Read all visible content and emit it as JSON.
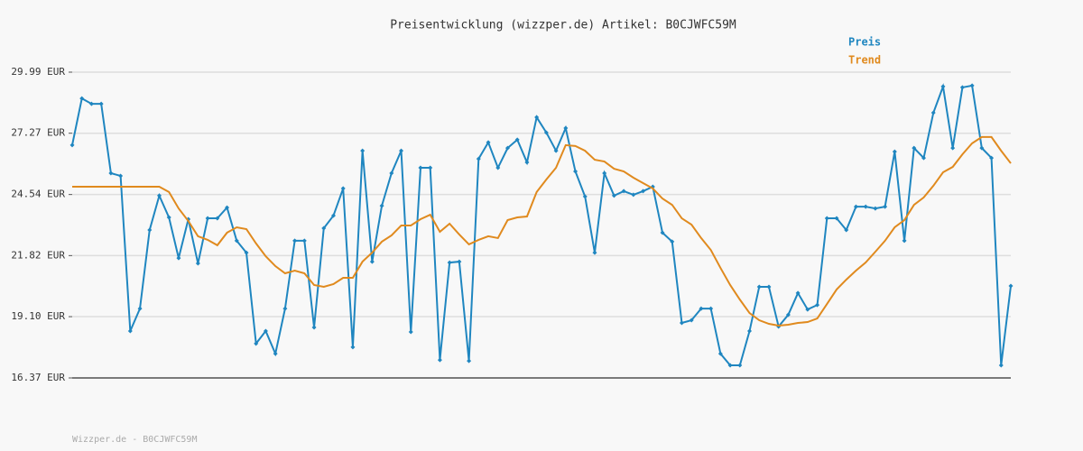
{
  "chart_data": {
    "type": "line",
    "title": "Preisentwicklung (wizzper.de) Artikel: B0CJWFC59M",
    "footer": "Wizzper.de - B0CJWFC59M",
    "categories": [
      null,
      null,
      null,
      null,
      null,
      null,
      null,
      null,
      null,
      null,
      null,
      null,
      null,
      null,
      null,
      null,
      null,
      null,
      null,
      null,
      null,
      null,
      null,
      null,
      null,
      null,
      null,
      null,
      null,
      null,
      null,
      null,
      null,
      null,
      null,
      null,
      null,
      null,
      null,
      null,
      null,
      null,
      null,
      null,
      null,
      null,
      null,
      null,
      null,
      null,
      null,
      null,
      null,
      null,
      null,
      null,
      null,
      null,
      null,
      null,
      null,
      null,
      null,
      null,
      null,
      null,
      null,
      null,
      null,
      null,
      null,
      null,
      null,
      null,
      null,
      null,
      null,
      null,
      null,
      null,
      null,
      null,
      null,
      null,
      null,
      null,
      null,
      null,
      null,
      null,
      null,
      null,
      null,
      null,
      null,
      null,
      null,
      null
    ],
    "ylim": [
      16.37,
      29.99
    ],
    "yticks": [
      {
        "value": 16.37,
        "label": "16.37 EUR"
      },
      {
        "value": 19.1,
        "label": "19.10 EUR"
      },
      {
        "value": 21.82,
        "label": "21.82 EUR"
      },
      {
        "value": 24.54,
        "label": "24.54 EUR"
      },
      {
        "value": 27.27,
        "label": "27.27 EUR"
      },
      {
        "value": 29.99,
        "label": "29.99 EUR"
      }
    ],
    "grid": true,
    "legend": "top-right",
    "series": [
      {
        "name": "Preis",
        "color": "#1f86c0",
        "markers": true,
        "values": [
          26.74,
          28.82,
          28.58,
          28.58,
          25.49,
          25.37,
          18.46,
          19.46,
          22.96,
          24.49,
          23.52,
          21.71,
          23.44,
          21.47,
          23.48,
          23.48,
          23.96,
          22.48,
          21.95,
          17.9,
          18.46,
          17.45,
          19.46,
          22.48,
          22.48,
          18.62,
          23.04,
          23.6,
          24.81,
          17.74,
          26.49,
          21.55,
          24.04,
          25.49,
          26.49,
          18.42,
          25.73,
          25.73,
          17.17,
          21.51,
          21.55,
          17.13,
          26.13,
          26.86,
          25.73,
          26.61,
          26.98,
          25.97,
          27.98,
          27.3,
          26.49,
          27.5,
          25.57,
          24.45,
          21.95,
          25.49,
          24.49,
          24.69,
          24.53,
          24.69,
          24.89,
          22.84,
          22.44,
          18.82,
          18.94,
          19.46,
          19.46,
          17.45,
          16.93,
          16.93,
          18.46,
          20.43,
          20.43,
          18.66,
          19.18,
          20.15,
          19.42,
          19.62,
          23.48,
          23.48,
          22.96,
          24.0,
          24.0,
          23.92,
          24.0,
          26.45,
          22.48,
          26.61,
          26.17,
          28.18,
          29.35,
          26.61,
          29.31,
          29.39,
          26.61,
          26.17,
          16.93,
          20.47
        ]
      },
      {
        "name": "Trend",
        "color": "#e08a1e",
        "markers": false,
        "values": [
          24.89,
          24.89,
          24.89,
          24.89,
          24.89,
          24.89,
          24.89,
          24.89,
          24.89,
          24.89,
          24.65,
          23.92,
          23.36,
          22.68,
          22.52,
          22.28,
          22.84,
          23.08,
          23.0,
          22.36,
          21.79,
          21.35,
          21.03,
          21.15,
          21.03,
          20.51,
          20.43,
          20.55,
          20.83,
          20.83,
          21.55,
          21.95,
          22.44,
          22.72,
          23.16,
          23.16,
          23.44,
          23.64,
          22.88,
          23.24,
          22.76,
          22.32,
          22.52,
          22.68,
          22.6,
          23.4,
          23.52,
          23.56,
          24.65,
          25.21,
          25.73,
          26.74,
          26.7,
          26.49,
          26.09,
          26.01,
          25.69,
          25.57,
          25.29,
          25.05,
          24.81,
          24.36,
          24.08,
          23.48,
          23.2,
          22.6,
          22.07,
          21.27,
          20.51,
          19.86,
          19.26,
          18.94,
          18.78,
          18.7,
          18.74,
          18.82,
          18.86,
          19.02,
          19.66,
          20.31,
          20.75,
          21.15,
          21.51,
          21.99,
          22.48,
          23.08,
          23.4,
          24.08,
          24.41,
          24.93,
          25.53,
          25.77,
          26.33,
          26.82,
          27.1,
          27.1,
          26.49,
          25.93
        ]
      }
    ]
  }
}
